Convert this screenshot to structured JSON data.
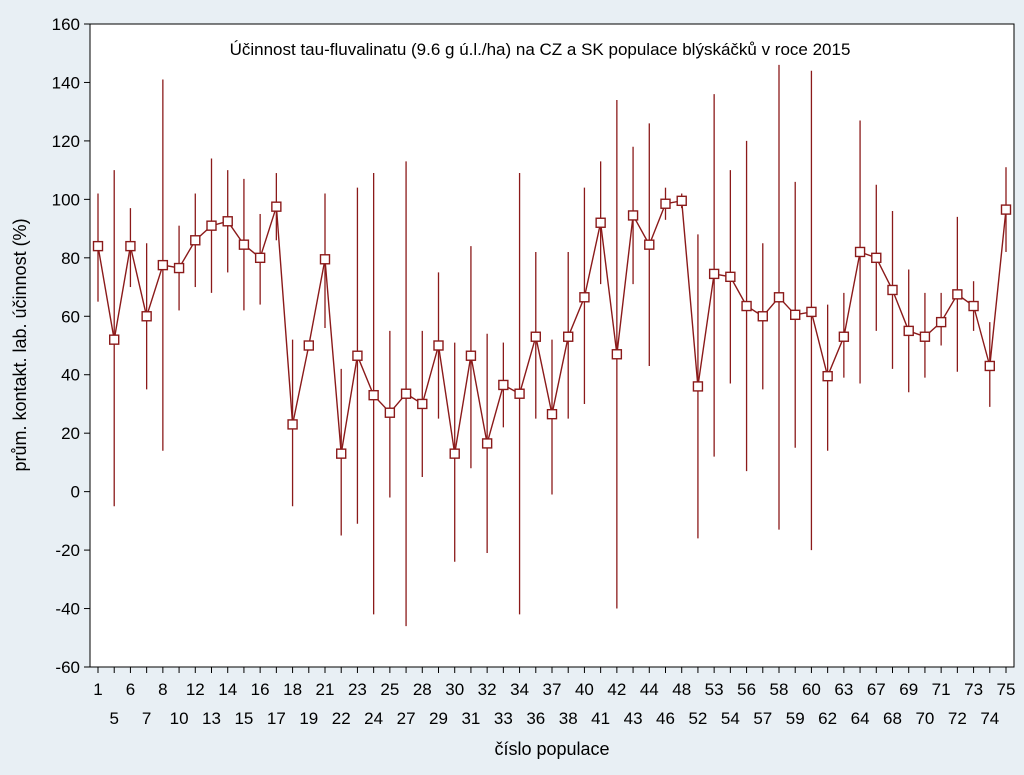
{
  "chart_data": {
    "type": "line",
    "title": "Účinnost tau-fluvalinatu (9.6 g ú.l./ha) na CZ a SK populace blýskáčků v roce 2015",
    "xlabel": "číslo populace",
    "ylabel": "prům. kontakt. lab. účinnost (%)",
    "ylim": [
      -60,
      160
    ],
    "yticks": [
      -60,
      -40,
      -20,
      0,
      20,
      40,
      60,
      80,
      100,
      120,
      140,
      160
    ],
    "categories": [
      "1",
      "5",
      "6",
      "7",
      "8",
      "10",
      "12",
      "13",
      "14",
      "15",
      "16",
      "17",
      "18",
      "19",
      "21",
      "22",
      "23",
      "24",
      "25",
      "27",
      "28",
      "29",
      "30",
      "31",
      "32",
      "33",
      "34",
      "36",
      "37",
      "38",
      "40",
      "41",
      "42",
      "43",
      "44",
      "46",
      "48",
      "52",
      "53",
      "54",
      "56",
      "57",
      "58",
      "59",
      "60",
      "62",
      "63",
      "64",
      "67",
      "68",
      "69",
      "70",
      "71",
      "72",
      "73",
      "74",
      "75"
    ],
    "x_tick_rows": {
      "top": [
        "1",
        "6",
        "8",
        "12",
        "14",
        "16",
        "18",
        "21",
        "23",
        "25",
        "28",
        "30",
        "32",
        "34",
        "37",
        "40",
        "42",
        "44",
        "48",
        "53",
        "56",
        "58",
        "60",
        "63",
        "67",
        "69",
        "71",
        "73",
        "75"
      ],
      "bottom": [
        "5",
        "7",
        "10",
        "13",
        "15",
        "17",
        "19",
        "22",
        "24",
        "27",
        "29",
        "31",
        "33",
        "36",
        "38",
        "41",
        "43",
        "46",
        "52",
        "54",
        "57",
        "59",
        "62",
        "64",
        "68",
        "70",
        "72",
        "74"
      ]
    },
    "series": [
      {
        "color": "#8b1a1a",
        "values": [
          84,
          52,
          84,
          60,
          77.5,
          76.5,
          86,
          91,
          92.5,
          84.5,
          80,
          97.5,
          23,
          50,
          79.5,
          13,
          46.5,
          33,
          27,
          33.5,
          30,
          50,
          13,
          46.5,
          16.5,
          36.5,
          33.5,
          53,
          26.5,
          53,
          66.5,
          92,
          47,
          94.5,
          84.5,
          98.5,
          99.5,
          36,
          74.5,
          73.5,
          63.5,
          60,
          66.5,
          60.5,
          61.5,
          39.5,
          53,
          82,
          80,
          69,
          55,
          53,
          58,
          67.5,
          63.5,
          43,
          96.5
        ],
        "upper": [
          102,
          110,
          97,
          85,
          141,
          91,
          102,
          114,
          110,
          107,
          95,
          109,
          52,
          50,
          102,
          42,
          104,
          109,
          55,
          113,
          55,
          75,
          51,
          84,
          54,
          51,
          109,
          82,
          52,
          82,
          104,
          113,
          134,
          118,
          126,
          104,
          102,
          88,
          136,
          110,
          120,
          85,
          146,
          106,
          144,
          64,
          68,
          127,
          105,
          96,
          76,
          68,
          68,
          94,
          72,
          58,
          111
        ],
        "lower": [
          65,
          -5,
          70,
          35,
          14,
          62,
          70,
          68,
          75,
          62,
          64,
          86,
          -5,
          50,
          56,
          -15,
          -11,
          -42,
          -2,
          -46,
          5,
          25,
          -24,
          8,
          -21,
          22,
          -42,
          25,
          -1,
          25,
          30,
          71,
          -40,
          71,
          43,
          93,
          97,
          -16,
          12,
          37,
          7,
          35,
          -13,
          15,
          -20,
          14,
          39,
          37,
          55,
          42,
          34,
          39,
          50,
          41,
          55,
          29,
          82
        ]
      }
    ]
  }
}
